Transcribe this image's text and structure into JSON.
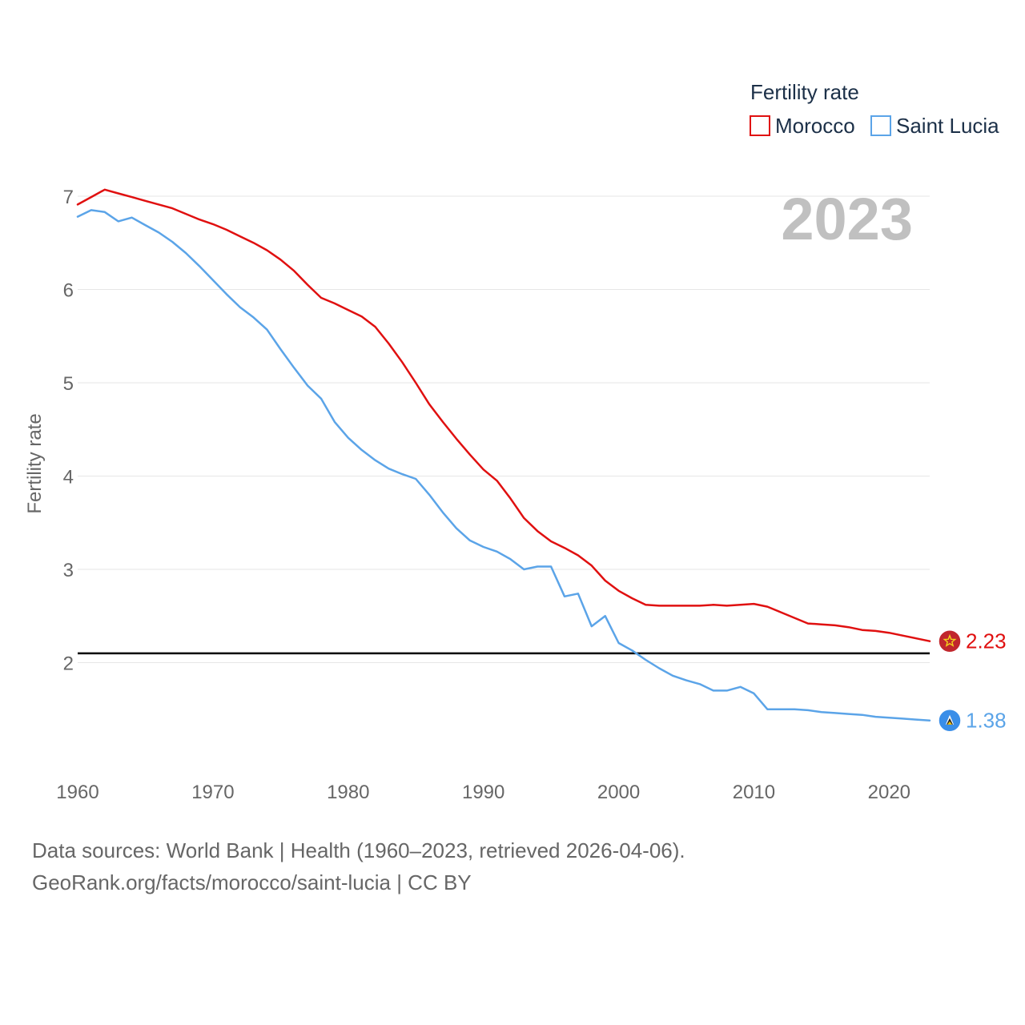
{
  "chart_data": {
    "type": "line",
    "year_label": "2023",
    "ylabel": "Fertility rate",
    "legend": {
      "title": "Fertility rate",
      "placement": "top-right",
      "entries": [
        "Morocco",
        "Saint Lucia"
      ]
    },
    "x": [
      1960,
      1961,
      1962,
      1963,
      1964,
      1965,
      1966,
      1967,
      1968,
      1969,
      1970,
      1971,
      1972,
      1973,
      1974,
      1975,
      1976,
      1977,
      1978,
      1979,
      1980,
      1981,
      1982,
      1983,
      1984,
      1985,
      1986,
      1987,
      1988,
      1989,
      1990,
      1991,
      1992,
      1993,
      1994,
      1995,
      1996,
      1997,
      1998,
      1999,
      2000,
      2001,
      2002,
      2003,
      2004,
      2005,
      2006,
      2007,
      2008,
      2009,
      2010,
      2011,
      2012,
      2013,
      2014,
      2015,
      2016,
      2017,
      2018,
      2019,
      2020,
      2021,
      2022,
      2023
    ],
    "series": [
      {
        "name": "Morocco",
        "color": "#e01010",
        "end_label": "2.23",
        "flag_icon": "morocco-flag-icon",
        "values": [
          6.91,
          6.99,
          7.07,
          7.03,
          6.99,
          6.95,
          6.91,
          6.87,
          6.81,
          6.75,
          6.7,
          6.64,
          6.57,
          6.5,
          6.42,
          6.32,
          6.2,
          6.05,
          5.91,
          5.85,
          5.78,
          5.71,
          5.6,
          5.42,
          5.22,
          5.0,
          4.77,
          4.58,
          4.4,
          4.23,
          4.07,
          3.95,
          3.76,
          3.55,
          3.41,
          3.3,
          3.23,
          3.15,
          3.04,
          2.88,
          2.77,
          2.69,
          2.62,
          2.61,
          2.61,
          2.61,
          2.61,
          2.62,
          2.61,
          2.62,
          2.63,
          2.6,
          2.54,
          2.48,
          2.42,
          2.41,
          2.4,
          2.38,
          2.35,
          2.34,
          2.32,
          2.29,
          2.26,
          2.23
        ]
      },
      {
        "name": "Saint Lucia",
        "color": "#5ba4e8",
        "end_label": "1.38",
        "flag_icon": "saint-lucia-flag-icon",
        "values": [
          6.78,
          6.85,
          6.83,
          6.73,
          6.77,
          6.69,
          6.61,
          6.51,
          6.39,
          6.25,
          6.1,
          5.95,
          5.81,
          5.7,
          5.57,
          5.36,
          5.16,
          4.97,
          4.83,
          4.58,
          4.41,
          4.28,
          4.17,
          4.08,
          4.02,
          3.97,
          3.8,
          3.61,
          3.44,
          3.31,
          3.24,
          3.19,
          3.11,
          3.0,
          3.03,
          3.03,
          2.71,
          2.74,
          2.39,
          2.5,
          2.21,
          2.13,
          2.03,
          1.94,
          1.86,
          1.81,
          1.77,
          1.7,
          1.7,
          1.74,
          1.67,
          1.5,
          1.5,
          1.5,
          1.49,
          1.47,
          1.46,
          1.45,
          1.44,
          1.42,
          1.41,
          1.4,
          1.39,
          1.38
        ]
      }
    ],
    "reference_line": {
      "value": 2.1,
      "color": "#000000"
    },
    "xticks": [
      "1960",
      "1970",
      "1980",
      "1990",
      "2000",
      "2010",
      "2020"
    ],
    "yticks": [
      "2",
      "3",
      "4",
      "5",
      "6",
      "7"
    ],
    "xlim": [
      1960,
      2023
    ],
    "ylim": [
      1.0,
      7.3
    ],
    "grid": true
  },
  "footer": {
    "line1": "Data sources: World Bank | Health (1960–2023, retrieved 2026-04-06).",
    "line2": "GeoRank.org/facts/morocco/saint-lucia | CC BY"
  }
}
